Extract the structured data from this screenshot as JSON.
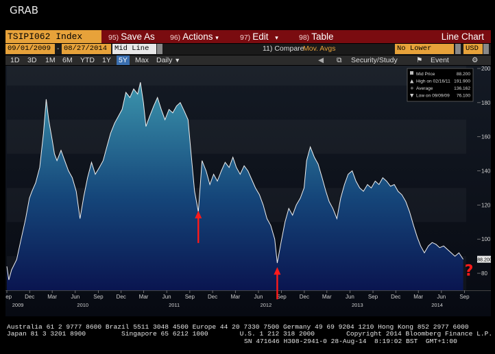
{
  "window": {
    "title": "GRAB"
  },
  "toolbar": {
    "ticker": "TSIPI062 Index",
    "buttons": [
      {
        "num": "95)",
        "label": "Save As"
      },
      {
        "num": "96)",
        "label": "Actions"
      },
      {
        "num": "97)",
        "label": "Edit"
      },
      {
        "num": "98)",
        "label": "Table"
      }
    ],
    "chart_type": "Line Chart"
  },
  "controls": {
    "start_date": "09/01/2009",
    "end_date": "08/27/2014",
    "dash": "-",
    "mode": "Mid Line",
    "compare": "11) Compare",
    "mov_avgs": "Mov. Avgs",
    "lower_chart": "No Lower Chart",
    "currency": "USD"
  },
  "periods": [
    "1D",
    "3D",
    "1M",
    "6M",
    "YTD",
    "1Y",
    "5Y",
    "Max"
  ],
  "active_period": "5Y",
  "frequency": "Daily",
  "security_study": "Security/Study",
  "event": "Event",
  "legend": {
    "rows": [
      {
        "label": "Mid Price",
        "value": "88.200"
      },
      {
        "label": "High on 02/16/11",
        "value": "191.900"
      },
      {
        "label": "Average",
        "value": "136.162"
      },
      {
        "label": "Low on 09/09/09",
        "value": "76.100"
      }
    ]
  },
  "last_value_tag": "88.200",
  "question_mark": "?",
  "footer": {
    "line1": "Australia 61 2 9777 8600 Brazil 5511 3048 4500 Europe 44 20 7330 7500 Germany 49 69 9204 1210 Hong Kong 852 2977 6000",
    "line2": "Japan 81 3 3201 8900         Singapore 65 6212 1000        U.S. 1 212 318 2000        Copyright 2014 Bloomberg Finance L.P.",
    "line3": "SN 471646 H308-2941-0 28-Aug-14  8:19:02 BST  GMT+1:00"
  },
  "colors": {
    "toolbar_red": "#7a0c10",
    "field_amber": "#e7a23a",
    "area_top": "#3a8fa8",
    "area_bottom": "#0a1850",
    "line": "#f0f0f0",
    "arrow": "#ff1a1a"
  },
  "chart_data": {
    "type": "area",
    "title": "",
    "ylabel": "",
    "xlabel": "",
    "ylim": [
      70,
      200
    ],
    "yticks": [
      80,
      100,
      120,
      140,
      160,
      180,
      200
    ],
    "x_ticks": [
      {
        "date": "2009-09-01",
        "label": "Sep"
      },
      {
        "date": "2009-12-01",
        "label": "Dec"
      },
      {
        "date": "2010-03-01",
        "label": "Mar"
      },
      {
        "date": "2010-06-01",
        "label": "Jun"
      },
      {
        "date": "2010-09-01",
        "label": "Sep"
      },
      {
        "date": "2010-12-01",
        "label": "Dec"
      },
      {
        "date": "2011-03-01",
        "label": "Mar"
      },
      {
        "date": "2011-06-01",
        "label": "Jun"
      },
      {
        "date": "2011-09-01",
        "label": "Sep"
      },
      {
        "date": "2011-12-01",
        "label": "Dec"
      },
      {
        "date": "2012-03-01",
        "label": "Mar"
      },
      {
        "date": "2012-06-01",
        "label": "Jun"
      },
      {
        "date": "2012-09-01",
        "label": "Sep"
      },
      {
        "date": "2012-12-01",
        "label": "Dec"
      },
      {
        "date": "2013-03-01",
        "label": "Mar"
      },
      {
        "date": "2013-06-01",
        "label": "Jun"
      },
      {
        "date": "2013-09-01",
        "label": "Sep"
      },
      {
        "date": "2013-12-01",
        "label": "Dec"
      },
      {
        "date": "2014-03-01",
        "label": "Mar"
      },
      {
        "date": "2014-06-01",
        "label": "Jun"
      },
      {
        "date": "2014-09-01",
        "label": "Sep"
      }
    ],
    "year_labels": [
      {
        "date": "2009-10-15",
        "label": "2009"
      },
      {
        "date": "2010-07-01",
        "label": "2010"
      },
      {
        "date": "2011-07-01",
        "label": "2011"
      },
      {
        "date": "2012-07-01",
        "label": "2012"
      },
      {
        "date": "2013-07-01",
        "label": "2013"
      },
      {
        "date": "2014-05-15",
        "label": "2014"
      }
    ],
    "series": [
      {
        "name": "Mid Price",
        "points": [
          [
            "2009-09-01",
            84
          ],
          [
            "2009-09-09",
            76.1
          ],
          [
            "2009-09-20",
            82
          ],
          [
            "2009-10-10",
            88
          ],
          [
            "2009-10-25",
            98
          ],
          [
            "2009-11-15",
            112
          ],
          [
            "2009-11-30",
            124
          ],
          [
            "2009-12-10",
            128
          ],
          [
            "2009-12-25",
            133
          ],
          [
            "2010-01-10",
            142
          ],
          [
            "2010-01-25",
            162
          ],
          [
            "2010-02-05",
            182
          ],
          [
            "2010-02-15",
            170
          ],
          [
            "2010-03-01",
            158
          ],
          [
            "2010-03-10",
            150
          ],
          [
            "2010-03-20",
            146
          ],
          [
            "2010-04-05",
            152
          ],
          [
            "2010-04-20",
            146
          ],
          [
            "2010-05-05",
            140
          ],
          [
            "2010-05-20",
            136
          ],
          [
            "2010-06-05",
            128
          ],
          [
            "2010-06-20",
            112
          ],
          [
            "2010-07-05",
            125
          ],
          [
            "2010-07-20",
            136
          ],
          [
            "2010-08-05",
            145
          ],
          [
            "2010-08-20",
            138
          ],
          [
            "2010-09-05",
            142
          ],
          [
            "2010-09-20",
            146
          ],
          [
            "2010-10-05",
            154
          ],
          [
            "2010-10-20",
            162
          ],
          [
            "2010-11-05",
            168
          ],
          [
            "2010-11-20",
            172
          ],
          [
            "2010-12-05",
            176
          ],
          [
            "2010-12-20",
            186
          ],
          [
            "2011-01-05",
            183
          ],
          [
            "2011-01-20",
            188
          ],
          [
            "2011-02-05",
            185
          ],
          [
            "2011-02-16",
            191.9
          ],
          [
            "2011-02-28",
            180
          ],
          [
            "2011-03-10",
            166
          ],
          [
            "2011-03-25",
            172
          ],
          [
            "2011-04-10",
            178
          ],
          [
            "2011-04-25",
            183
          ],
          [
            "2011-05-10",
            176
          ],
          [
            "2011-05-25",
            170
          ],
          [
            "2011-06-10",
            176
          ],
          [
            "2011-06-25",
            174
          ],
          [
            "2011-07-10",
            178
          ],
          [
            "2011-07-25",
            180
          ],
          [
            "2011-08-10",
            175
          ],
          [
            "2011-08-25",
            170
          ],
          [
            "2011-09-05",
            152
          ],
          [
            "2011-09-20",
            128
          ],
          [
            "2011-10-05",
            116
          ],
          [
            "2011-10-20",
            146
          ],
          [
            "2011-11-05",
            140
          ],
          [
            "2011-11-20",
            132
          ],
          [
            "2011-12-05",
            138
          ],
          [
            "2011-12-20",
            134
          ],
          [
            "2012-01-05",
            140
          ],
          [
            "2012-01-20",
            145
          ],
          [
            "2012-02-05",
            142
          ],
          [
            "2012-02-20",
            148
          ],
          [
            "2012-03-05",
            142
          ],
          [
            "2012-03-20",
            138
          ],
          [
            "2012-04-05",
            143
          ],
          [
            "2012-04-20",
            140
          ],
          [
            "2012-05-05",
            135
          ],
          [
            "2012-05-20",
            130
          ],
          [
            "2012-06-05",
            126
          ],
          [
            "2012-06-20",
            120
          ],
          [
            "2012-07-05",
            112
          ],
          [
            "2012-07-20",
            108
          ],
          [
            "2012-08-05",
            100
          ],
          [
            "2012-08-15",
            86
          ],
          [
            "2012-08-30",
            98
          ],
          [
            "2012-09-15",
            110
          ],
          [
            "2012-09-30",
            118
          ],
          [
            "2012-10-15",
            114
          ],
          [
            "2012-10-30",
            120
          ],
          [
            "2012-11-15",
            124
          ],
          [
            "2012-11-30",
            130
          ],
          [
            "2012-12-10",
            146
          ],
          [
            "2012-12-25",
            154
          ],
          [
            "2013-01-10",
            148
          ],
          [
            "2013-01-25",
            144
          ],
          [
            "2013-02-10",
            136
          ],
          [
            "2013-02-25",
            128
          ],
          [
            "2013-03-10",
            122
          ],
          [
            "2013-03-25",
            118
          ],
          [
            "2013-04-10",
            112
          ],
          [
            "2013-04-25",
            124
          ],
          [
            "2013-05-10",
            132
          ],
          [
            "2013-05-25",
            138
          ],
          [
            "2013-06-10",
            140
          ],
          [
            "2013-06-25",
            134
          ],
          [
            "2013-07-10",
            130
          ],
          [
            "2013-07-25",
            128
          ],
          [
            "2013-08-10",
            132
          ],
          [
            "2013-08-25",
            130
          ],
          [
            "2013-09-10",
            134
          ],
          [
            "2013-09-25",
            132
          ],
          [
            "2013-10-10",
            136
          ],
          [
            "2013-10-25",
            134
          ],
          [
            "2013-11-10",
            131
          ],
          [
            "2013-11-25",
            132
          ],
          [
            "2013-12-10",
            128
          ],
          [
            "2013-12-25",
            126
          ],
          [
            "2014-01-10",
            122
          ],
          [
            "2014-01-25",
            116
          ],
          [
            "2014-02-10",
            108
          ],
          [
            "2014-02-25",
            101
          ],
          [
            "2014-03-10",
            96
          ],
          [
            "2014-03-25",
            92
          ],
          [
            "2014-04-10",
            96
          ],
          [
            "2014-04-25",
            98
          ],
          [
            "2014-05-10",
            97
          ],
          [
            "2014-05-25",
            95
          ],
          [
            "2014-06-10",
            96
          ],
          [
            "2014-06-25",
            94
          ],
          [
            "2014-07-10",
            92
          ],
          [
            "2014-07-25",
            90
          ],
          [
            "2014-08-10",
            92
          ],
          [
            "2014-08-27",
            88.2
          ]
        ]
      }
    ],
    "annotations": [
      {
        "type": "arrow",
        "date": "2011-10-05",
        "value": 117
      },
      {
        "type": "arrow",
        "date": "2012-08-15",
        "value": 84
      },
      {
        "type": "question",
        "date": "2014-08-27",
        "value": 85
      }
    ]
  }
}
